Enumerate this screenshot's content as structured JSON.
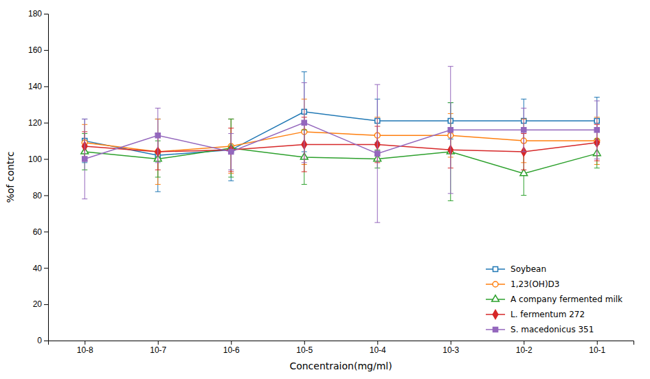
{
  "chart_data": {
    "type": "line",
    "categories": [
      "10-8",
      "10-7",
      "10-6",
      "10-5",
      "10-4",
      "10-3",
      "10-2",
      "10-1"
    ],
    "series": [
      {
        "name": "Soybean",
        "marker": "square-open",
        "line_style": "solid",
        "values": [
          110,
          102,
          105,
          126,
          121,
          121,
          121,
          121
        ],
        "errors": [
          12,
          20,
          17,
          22,
          12,
          10,
          12,
          13
        ]
      },
      {
        "name": "1,23(OH)D3",
        "marker": "circle-open",
        "line_style": "solid",
        "values": [
          109,
          104,
          107,
          115,
          113,
          113,
          110,
          110
        ],
        "errors": [
          10,
          18,
          15,
          18,
          10,
          12,
          12,
          13
        ]
      },
      {
        "name": "A company fermented milk",
        "marker": "triangle-open",
        "line_style": "solid",
        "values": [
          104,
          100,
          106,
          101,
          100,
          104,
          92,
          103
        ],
        "errors": [
          10,
          10,
          16,
          15,
          5,
          27,
          12,
          8
        ]
      },
      {
        "name": "L. fermentum 272",
        "marker": "diamond",
        "line_style": "solid",
        "values": [
          107,
          104,
          105,
          108,
          108,
          105,
          104,
          109
        ],
        "errors": [
          8,
          10,
          12,
          15,
          10,
          10,
          10,
          10
        ]
      },
      {
        "name": "S. macedonicus 351",
        "marker": "square",
        "line_style": "solid",
        "values": [
          100,
          113,
          104,
          120,
          103,
          116,
          116,
          116
        ],
        "errors": [
          22,
          15,
          10,
          22,
          38,
          35,
          12,
          16
        ]
      }
    ],
    "xlabel": "Concentraion(mg/ml)",
    "ylabel": "%of contrc",
    "ylim": [
      0,
      180
    ],
    "yticks": [
      0,
      20,
      40,
      60,
      80,
      100,
      120,
      140,
      160,
      180
    ],
    "grid": false,
    "legend": "lower right"
  }
}
